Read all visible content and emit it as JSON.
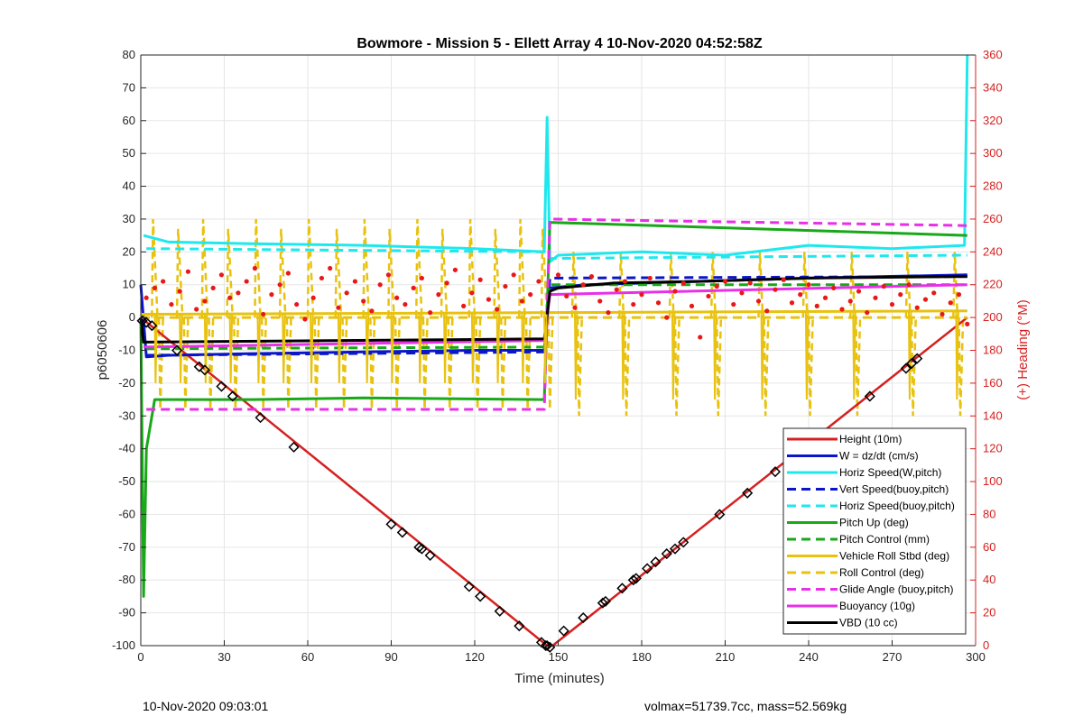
{
  "chart_data": {
    "type": "line",
    "title": "Bowmore - Mission 5 - Ellett Array 4 10-Nov-2020 04:52:58Z",
    "xlabel": "Time (minutes)",
    "ylabel": "p6050606",
    "y2label": "(+) Heading (°M)",
    "xlim": [
      0,
      300
    ],
    "ylim": [
      -100,
      80
    ],
    "y2lim": [
      0,
      360
    ],
    "xticks": [
      0,
      30,
      60,
      90,
      120,
      150,
      180,
      210,
      240,
      270,
      300
    ],
    "yticks": [
      -100,
      -90,
      -80,
      -70,
      -60,
      -50,
      -40,
      -30,
      -20,
      -10,
      0,
      10,
      20,
      30,
      40,
      50,
      60,
      70,
      80
    ],
    "y2ticks": [
      0,
      20,
      40,
      60,
      80,
      100,
      120,
      140,
      160,
      180,
      200,
      220,
      240,
      260,
      280,
      300,
      320,
      340,
      360
    ],
    "grid": true,
    "legend_position": "lower-right",
    "series": [
      {
        "name": "Height (10m)",
        "color": "#d62020",
        "style": "solid",
        "x": [
          0,
          146,
          148,
          297
        ],
        "y": [
          0,
          -100,
          -100,
          0
        ]
      },
      {
        "name": "W = dz/dt (cm/s)",
        "color": "#0a16c8",
        "style": "solid",
        "x": [
          0,
          2,
          10,
          40,
          80,
          120,
          145,
          147,
          160,
          200,
          240,
          297
        ],
        "y": [
          10,
          -12,
          -11.5,
          -11,
          -10.5,
          -10,
          -10,
          9,
          10,
          11,
          12,
          13
        ]
      },
      {
        "name": "Horiz Speed(W,pitch)",
        "color": "#1ee8ee",
        "style": "solid",
        "x": [
          1,
          10,
          40,
          80,
          120,
          145,
          146,
          147,
          150,
          180,
          210,
          240,
          270,
          296,
          297
        ],
        "y": [
          25,
          23,
          22.5,
          22,
          21,
          20,
          61,
          17,
          19,
          20,
          19,
          22,
          21,
          22,
          80
        ]
      },
      {
        "name": "Vert Speed(buoy,pitch)",
        "color": "#0a16c8",
        "style": "dashed",
        "x": [
          2,
          145,
          147,
          297
        ],
        "y": [
          -11.5,
          -10.5,
          12,
          12.5
        ]
      },
      {
        "name": "Horiz Speed(buoy,pitch)",
        "color": "#1ee8ee",
        "style": "dashed",
        "x": [
          2,
          145,
          147,
          297
        ],
        "y": [
          21,
          20,
          18,
          19
        ]
      },
      {
        "name": "Pitch Up (deg)",
        "color": "#18a818",
        "style": "solid",
        "x": [
          0,
          1,
          2,
          5,
          40,
          80,
          145,
          147,
          297
        ],
        "y": [
          0,
          -85,
          -40,
          -25,
          -25,
          -24.5,
          -25,
          29,
          25
        ]
      },
      {
        "name": "Pitch Control (mm)",
        "color": "#18a818",
        "style": "dashed",
        "x": [
          2,
          145,
          147,
          297
        ],
        "y": [
          -9.5,
          -9,
          10,
          10
        ]
      },
      {
        "name": "Vehicle Roll Stbd (deg)",
        "color": "#e8c20e",
        "style": "solid",
        "x": [
          0,
          297
        ],
        "y": [
          1,
          2
        ]
      },
      {
        "name": "Roll Control (deg)",
        "color": "#e8c20e",
        "style": "dashed",
        "x": [
          0,
          297
        ],
        "y": [
          0,
          0
        ]
      },
      {
        "name": "Glide Angle (buoy,pitch)",
        "color": "#e830e8",
        "style": "dashed",
        "x": [
          2,
          145,
          147,
          297
        ],
        "y": [
          -28,
          -28,
          30,
          28
        ]
      },
      {
        "name": "Buoyancy (10g)",
        "color": "#e830e8",
        "style": "solid",
        "x": [
          1,
          145,
          147,
          297
        ],
        "y": [
          -9,
          -7,
          7,
          10
        ]
      },
      {
        "name": "VBD (10 cc)",
        "color": "#000000",
        "style": "solid",
        "x": [
          0,
          1,
          145,
          147,
          150,
          170,
          200,
          220,
          240,
          297
        ],
        "y": [
          0,
          -7.5,
          -6.5,
          8,
          9,
          10.5,
          11,
          11.5,
          12,
          12.5
        ]
      }
    ],
    "heading_scatter": {
      "name": "(+) Heading (°M)",
      "color": "#e81818",
      "axis": "y2",
      "x": [
        2,
        5,
        8,
        11,
        14,
        17,
        20,
        23,
        26,
        29,
        32,
        35,
        38,
        41,
        44,
        47,
        50,
        53,
        56,
        59,
        62,
        65,
        68,
        71,
        74,
        77,
        80,
        83,
        86,
        89,
        92,
        95,
        98,
        101,
        104,
        107,
        110,
        113,
        116,
        119,
        122,
        125,
        128,
        131,
        134,
        137,
        140,
        143,
        150,
        153,
        156,
        159,
        162,
        165,
        168,
        171,
        174,
        177,
        180,
        183,
        186,
        189,
        192,
        195,
        198,
        201,
        204,
        207,
        210,
        213,
        216,
        219,
        222,
        225,
        228,
        231,
        234,
        237,
        240,
        243,
        246,
        249,
        252,
        255,
        258,
        261,
        264,
        267,
        270,
        273,
        276,
        279,
        282,
        285,
        288,
        291,
        294,
        297
      ],
      "y": [
        212,
        218,
        222,
        208,
        216,
        228,
        205,
        210,
        218,
        226,
        212,
        215,
        222,
        230,
        202,
        214,
        220,
        227,
        208,
        199,
        212,
        224,
        230,
        206,
        215,
        222,
        210,
        204,
        220,
        226,
        212,
        208,
        218,
        224,
        203,
        214,
        221,
        229,
        207,
        215,
        223,
        211,
        205,
        219,
        226,
        210,
        214,
        222,
        226,
        213,
        206,
        220,
        225,
        210,
        203,
        217,
        222,
        208,
        214,
        224,
        209,
        200,
        216,
        221,
        207,
        188,
        213,
        219,
        222,
        208,
        215,
        221,
        210,
        204,
        217,
        223,
        209,
        214,
        220,
        207,
        212,
        218,
        205,
        210,
        216,
        203,
        212,
        219,
        208,
        214,
        220,
        206,
        211,
        215,
        202,
        209,
        214,
        196
      ]
    },
    "markers": {
      "style": "black diamond/triangle",
      "x": [
        0.5,
        2,
        4,
        13,
        21,
        23,
        29,
        33,
        43,
        55,
        90,
        94,
        100,
        101,
        104,
        118,
        122,
        129,
        136,
        144,
        145.5,
        146,
        147,
        152,
        159,
        166,
        167,
        173,
        177,
        178,
        182,
        185,
        189,
        192,
        195,
        208,
        218,
        228,
        235,
        241,
        242,
        245,
        262,
        275,
        277,
        279
      ],
      "y": [
        -1,
        -1.5,
        -2.5,
        -10,
        -15,
        -16,
        -21,
        -24,
        -30.5,
        -39.5,
        -63,
        -65.5,
        -70,
        -70.5,
        -72.5,
        -82,
        -85,
        -89.5,
        -94,
        -99,
        -100,
        -100,
        -100.5,
        -95.5,
        -91.5,
        -87,
        -86.5,
        -82.5,
        -80,
        -79.5,
        -76.5,
        -74.5,
        -72,
        -70.5,
        -68.5,
        -60,
        -53.5,
        -47,
        -42,
        -38,
        -37.5,
        -35.5,
        -24,
        -15.5,
        -14,
        -12.5
      ]
    }
  },
  "footer": {
    "left": "10-Nov-2020 09:03:01",
    "right": "volmax=51739.7cc, mass=52.569kg"
  }
}
